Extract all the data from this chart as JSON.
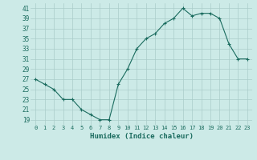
{
  "x": [
    0,
    1,
    2,
    3,
    4,
    5,
    6,
    7,
    8,
    9,
    10,
    11,
    12,
    13,
    14,
    15,
    16,
    17,
    18,
    19,
    20,
    21,
    22,
    23
  ],
  "y": [
    27,
    26,
    25,
    23,
    23,
    21,
    20,
    19,
    19,
    26,
    29,
    33,
    35,
    36,
    38,
    39,
    41,
    39.5,
    40,
    40,
    39,
    34,
    31,
    31
  ],
  "xlabel": "Humidex (Indice chaleur)",
  "xlim": [
    -0.5,
    23.5
  ],
  "ylim": [
    18,
    42
  ],
  "yticks": [
    19,
    21,
    23,
    25,
    27,
    29,
    31,
    33,
    35,
    37,
    39,
    41
  ],
  "xticks": [
    0,
    1,
    2,
    3,
    4,
    5,
    6,
    7,
    8,
    9,
    10,
    11,
    12,
    13,
    14,
    15,
    16,
    17,
    18,
    19,
    20,
    21,
    22,
    23
  ],
  "line_color": "#1a6b5e",
  "marker": "+",
  "bg_color": "#cceae7",
  "grid_color": "#aaccca",
  "label_color": "#1a6b5e",
  "tick_color": "#1a6b5e"
}
